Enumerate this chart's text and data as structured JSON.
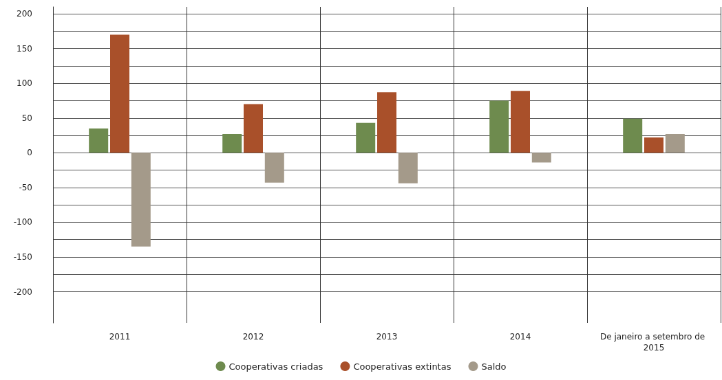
{
  "chart_data": {
    "type": "bar",
    "categories": [
      "2011",
      "2012",
      "2013",
      "2014",
      "De janeiro a setembro de 2015"
    ],
    "series": [
      {
        "name": "Cooperativas criadas",
        "color": "#6e8b4e",
        "values": [
          35,
          27,
          43,
          75,
          49
        ]
      },
      {
        "name": "Cooperativas extintas",
        "color": "#a9502a",
        "values": [
          170,
          70,
          87,
          89,
          22
        ]
      },
      {
        "name": "Saldo",
        "color": "#a49a8a",
        "values": [
          -135,
          -43,
          -44,
          -14,
          27
        ]
      }
    ],
    "ylim": [
      -245,
      210
    ],
    "yticks": [
      -200,
      {
        "value": -175,
        "label": null
      },
      -150,
      {
        "value": -125,
        "label": null
      },
      -100,
      {
        "value": -75,
        "label": null
      },
      -50,
      {
        "value": -25,
        "label": null
      },
      0,
      {
        "value": 25,
        "label": null
      },
      50,
      {
        "value": 75,
        "label": null
      },
      100,
      {
        "value": 125,
        "label": null
      },
      150,
      {
        "value": 175,
        "label": null
      },
      200
    ],
    "grid": true,
    "legend": "bottom"
  }
}
